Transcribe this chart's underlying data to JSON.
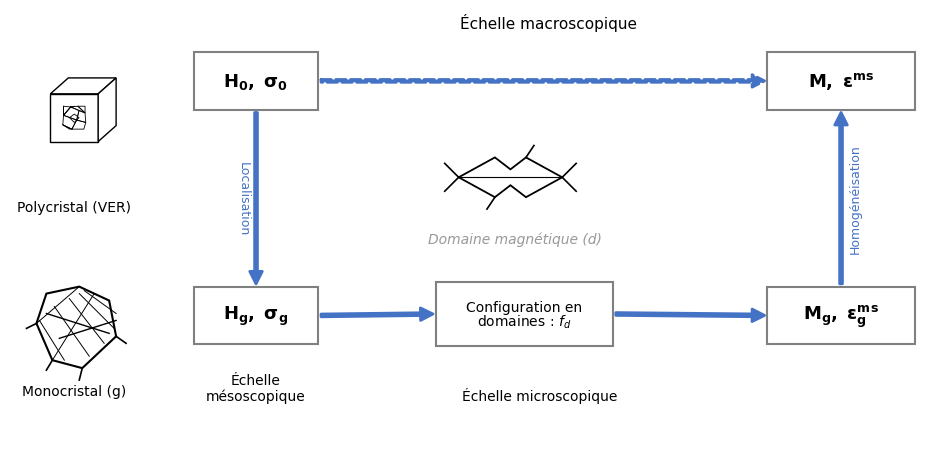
{
  "bg_color": "#ffffff",
  "arrow_color": "#4472c4",
  "box_edge_color": "#808080",
  "box_face_color": "#ffffff",
  "label_macro": "Échelle macroscopique",
  "label_meso": "Échelle\nmésoscopique",
  "label_micro": "Échelle microscopique",
  "label_polycrystal": "Polycristal (VER)",
  "label_monocrystal": "Monocristal (g)",
  "label_domain": "Domaine magnétique (d)",
  "label_localisation": "Localisation",
  "label_homogeneisation": "Homogénéisation"
}
